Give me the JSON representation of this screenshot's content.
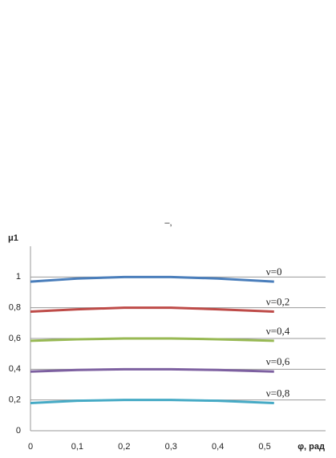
{
  "chart_data": {
    "type": "line",
    "caption": "–,",
    "y_label": "μ1",
    "x_label": "φ, рад",
    "x": [
      0,
      0.1,
      0.2,
      0.26,
      0.3,
      0.4,
      0.52
    ],
    "series": [
      {
        "name": "ν=0",
        "color": "#4a7ebb",
        "values": [
          0.97,
          0.99,
          1.0,
          1.0,
          1.0,
          0.99,
          0.97
        ]
      },
      {
        "name": "ν=0,2",
        "color": "#be4b48",
        "values": [
          0.775,
          0.79,
          0.8,
          0.8,
          0.8,
          0.79,
          0.775
        ]
      },
      {
        "name": "ν=0,4",
        "color": "#98b954",
        "values": [
          0.585,
          0.595,
          0.6,
          0.6,
          0.6,
          0.595,
          0.585
        ]
      },
      {
        "name": "ν=0,6",
        "color": "#7d60a0",
        "values": [
          0.385,
          0.395,
          0.4,
          0.4,
          0.4,
          0.395,
          0.385
        ]
      },
      {
        "name": "ν=0,8",
        "color": "#46aac5",
        "values": [
          0.18,
          0.195,
          0.2,
          0.2,
          0.2,
          0.195,
          0.18
        ]
      }
    ],
    "xlim": [
      0,
      0.63
    ],
    "ylim": [
      0,
      1.2
    ],
    "xticks": [
      0,
      {
        "value": 0.1,
        "label": "0,1"
      },
      {
        "value": 0.2,
        "label": "0,2"
      },
      {
        "value": 0.3,
        "label": "0,3"
      },
      {
        "value": 0.4,
        "label": "0,4"
      },
      {
        "value": 0.5,
        "label": "0,5"
      }
    ],
    "yticks": [
      0,
      {
        "value": 0.2,
        "label": "0,2"
      },
      {
        "value": 0.4,
        "label": "0,4"
      },
      {
        "value": 0.6,
        "label": "0,6"
      },
      {
        "value": 0.8,
        "label": "0,8"
      },
      1
    ],
    "grid": true
  }
}
